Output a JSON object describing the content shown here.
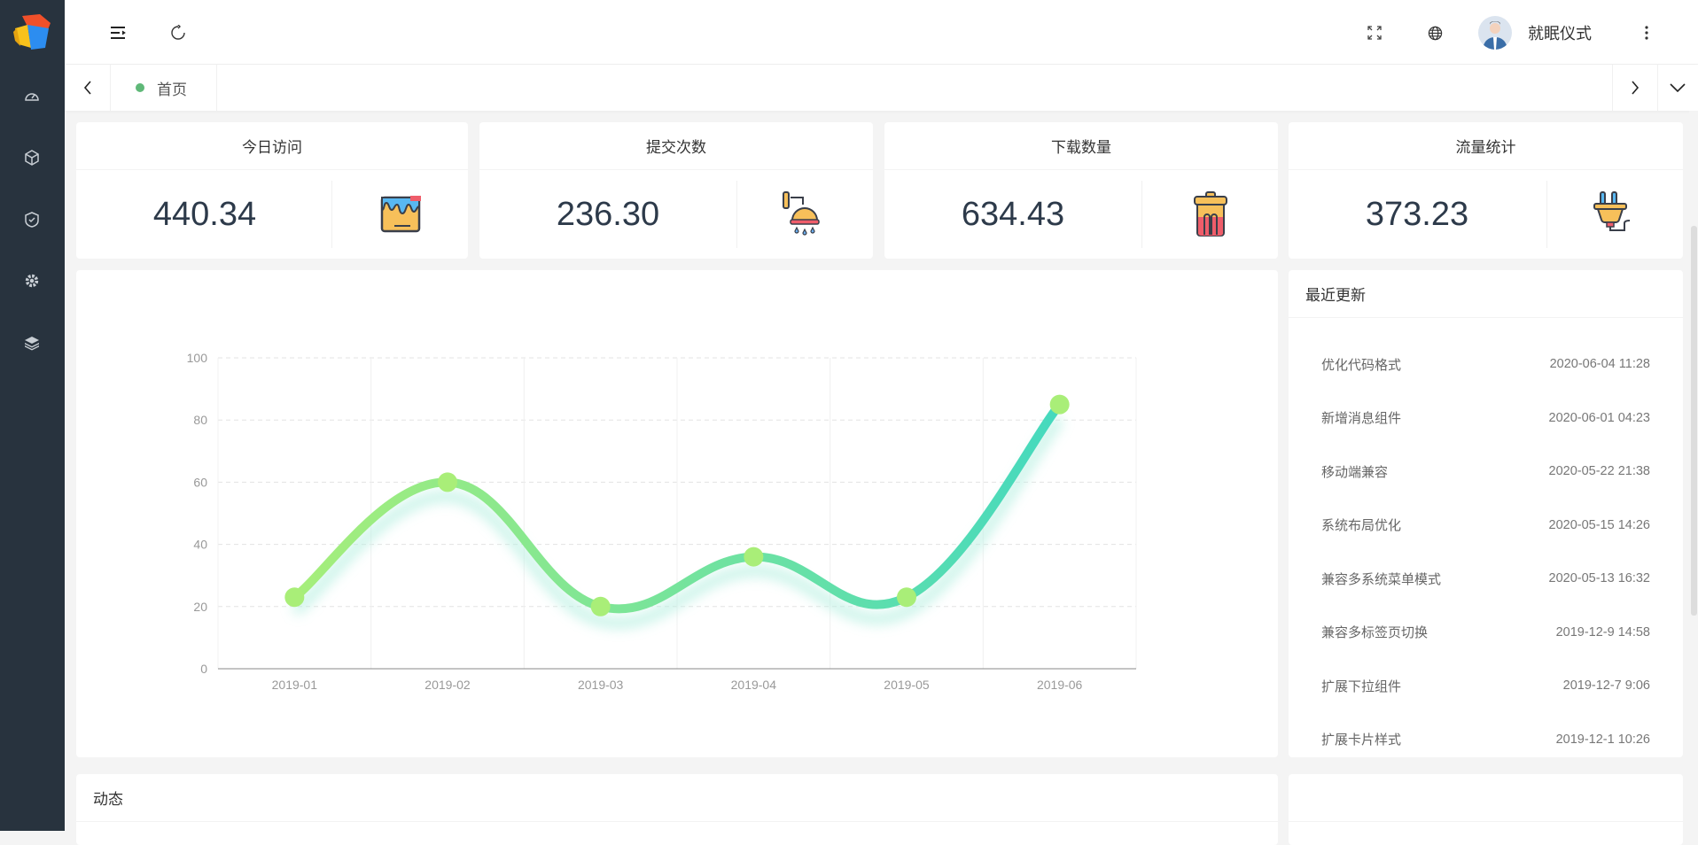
{
  "sidebar": {
    "items": [
      {
        "icon": "dashboard-icon"
      },
      {
        "icon": "cube-icon"
      },
      {
        "icon": "shield-check-icon"
      },
      {
        "icon": "gear-icon"
      },
      {
        "icon": "layers-icon"
      }
    ]
  },
  "header": {
    "username": "就眠仪式"
  },
  "tabs": {
    "items": [
      {
        "label": "首页",
        "active": true
      }
    ]
  },
  "stats": [
    {
      "title": "今日访问",
      "value": "440.34",
      "icon": "paint-bucket-icon"
    },
    {
      "title": "提交次数",
      "value": "236.30",
      "icon": "shower-icon"
    },
    {
      "title": "下载数量",
      "value": "634.43",
      "icon": "trash-can-icon"
    },
    {
      "title": "流量统计",
      "value": "373.23",
      "icon": "plug-icon"
    }
  ],
  "recent": {
    "title": "最近更新",
    "items": [
      {
        "text": "优化代码格式",
        "time": "2020-06-04 11:28"
      },
      {
        "text": "新增消息组件",
        "time": "2020-06-01 04:23"
      },
      {
        "text": "移动端兼容",
        "time": "2020-05-22 21:38"
      },
      {
        "text": "系统布局优化",
        "time": "2020-05-15 14:26"
      },
      {
        "text": "兼容多系统菜单模式",
        "time": "2020-05-13 16:32"
      },
      {
        "text": "兼容多标签页切换",
        "time": "2019-12-9 14:58"
      },
      {
        "text": "扩展下拉组件",
        "time": "2019-12-7 9:06"
      },
      {
        "text": "扩展卡片样式",
        "time": "2019-12-1 10:26"
      }
    ]
  },
  "activity": {
    "title": "动态"
  },
  "chart_data": {
    "type": "line",
    "smooth": true,
    "categories": [
      "2019-01",
      "2019-02",
      "2019-03",
      "2019-04",
      "2019-05",
      "2019-06"
    ],
    "values": [
      23,
      60,
      20,
      36,
      23,
      85
    ],
    "ylim": [
      0,
      100
    ],
    "yticks": [
      "0",
      "20",
      "40",
      "60",
      "80",
      "100"
    ],
    "grid": true,
    "colors": {
      "start": "#a6ee7a",
      "end": "#45d9be"
    }
  }
}
